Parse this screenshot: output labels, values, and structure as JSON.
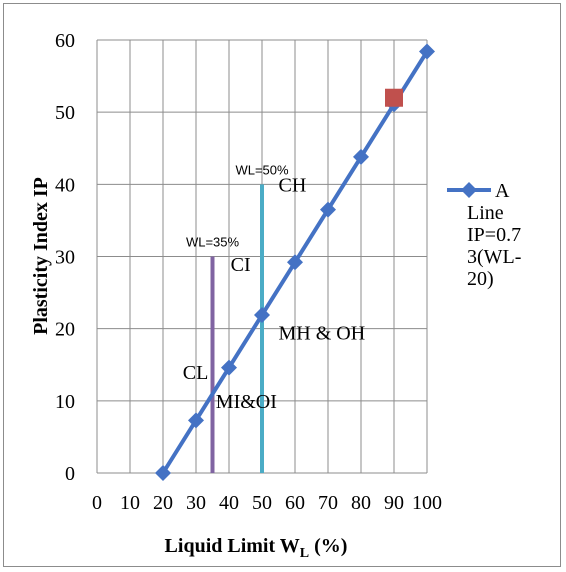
{
  "chart_data": {
    "type": "line",
    "xlabel_main": "Liquid Limit W",
    "xlabel_sub": "L",
    "xlabel_tail": " (%)",
    "ylabel": "Plasticity Index IP",
    "xlim": [
      0,
      100
    ],
    "ylim": [
      0,
      60
    ],
    "x_ticks": [
      "0",
      "10",
      "20",
      "30",
      "40",
      "50",
      "60",
      "70",
      "80",
      "90",
      "100"
    ],
    "y_ticks": [
      "0",
      "10",
      "20",
      "30",
      "40",
      "50",
      "60"
    ],
    "grid": true,
    "legend_position": "right",
    "series": [
      {
        "name_lines": [
          "A",
          "Line",
          "IP=0.7",
          "3(WL-",
          "20)"
        ],
        "color": "#4472c4",
        "marker": "diamond",
        "x": [
          20,
          30,
          40,
          50,
          60,
          70,
          80,
          90,
          100
        ],
        "y": [
          0,
          7.3,
          14.6,
          21.9,
          29.2,
          36.5,
          43.8,
          51.1,
          58.4
        ]
      }
    ],
    "highlight_point": {
      "x": 90,
      "y": 52,
      "color": "#c0504d"
    },
    "vertical_lines": [
      {
        "x": 35,
        "y_top": 30,
        "color": "#8064a2",
        "label": "WL=35%"
      },
      {
        "x": 50,
        "y_top": 40,
        "color": "#4bacc6",
        "label": "WL=50%"
      }
    ],
    "zone_labels": [
      {
        "text": "CH",
        "x": 55,
        "y": 39
      },
      {
        "text": "CI",
        "x": 40.5,
        "y": 28
      },
      {
        "text": "MH & OH",
        "x": 55,
        "y": 18.5
      },
      {
        "text": "CL",
        "x": 26,
        "y": 13
      },
      {
        "text": "MI&OI",
        "x": 36,
        "y": 9
      }
    ]
  }
}
